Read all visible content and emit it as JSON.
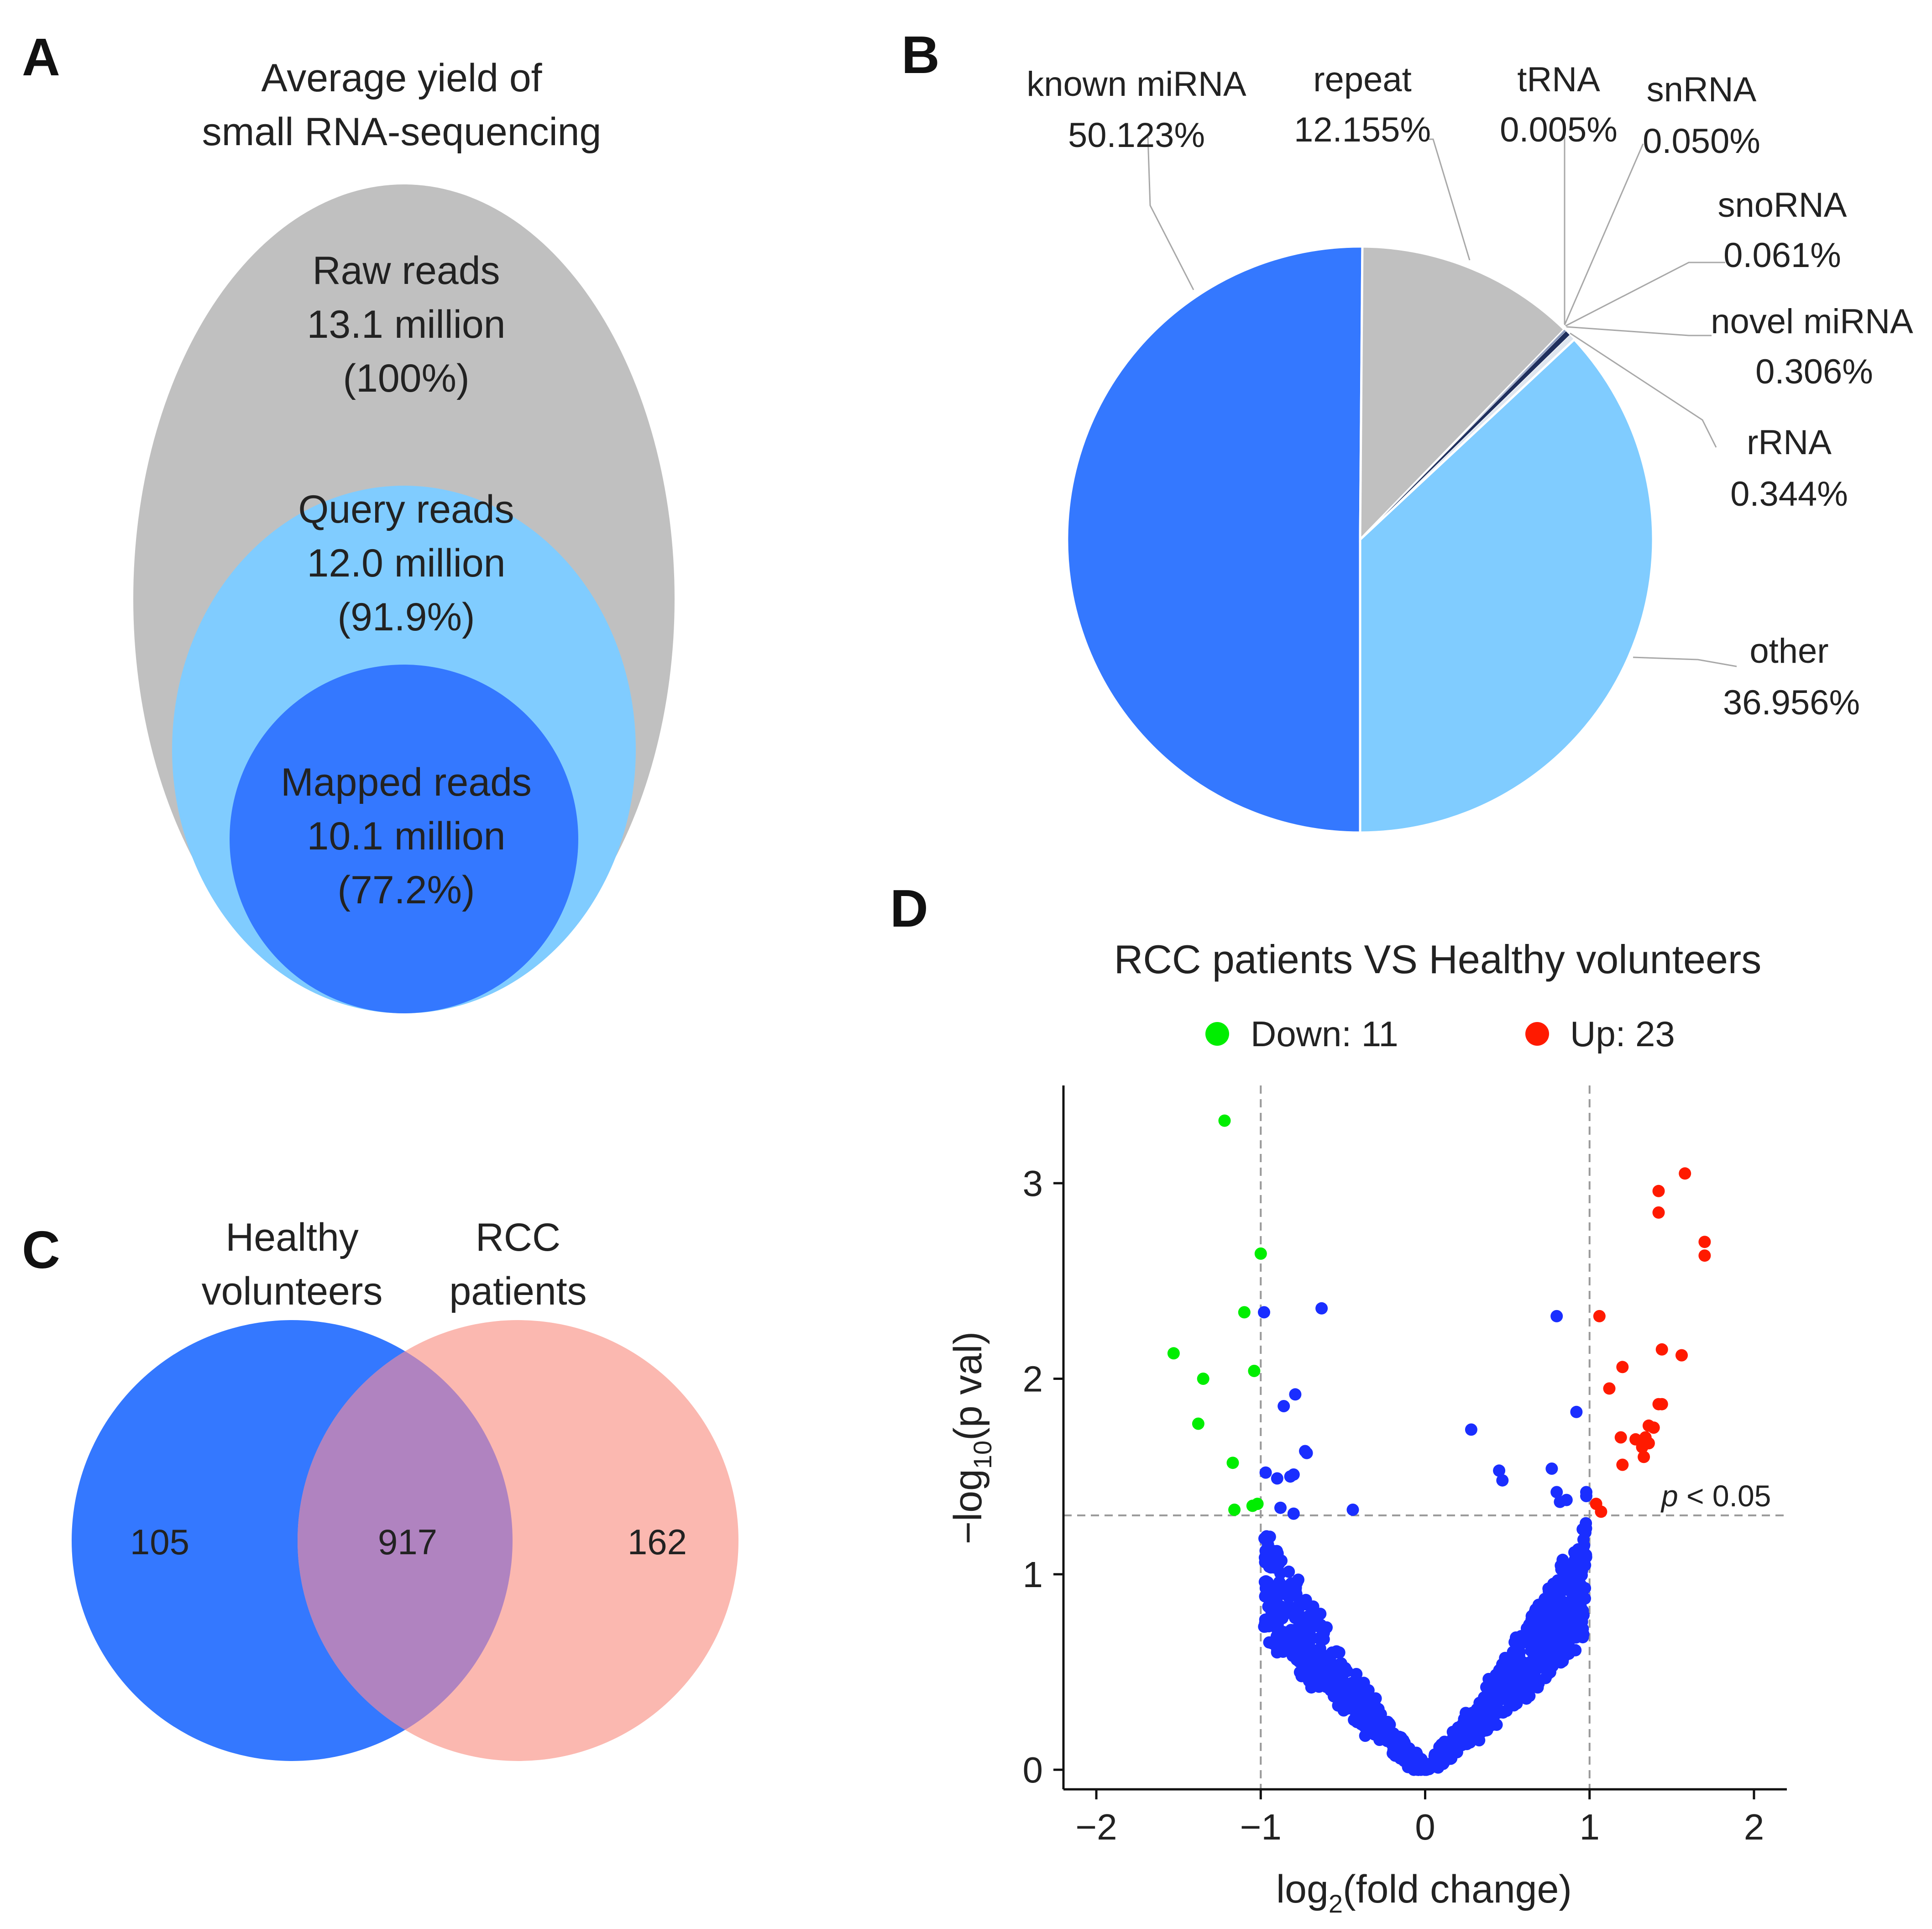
{
  "panels": {
    "a": "A",
    "b": "B",
    "c": "C",
    "d": "D"
  },
  "chart_data": [
    {
      "type": "nested-ellipse",
      "panel": "A",
      "title_line1": "Average yield of",
      "title_line2": "small RNA-sequencing",
      "levels": [
        {
          "name": "Raw reads",
          "value_text": "13.1 million",
          "pct_text": "(100%)",
          "value_million": 13.1,
          "percent": 100,
          "color": "#c0c0c0"
        },
        {
          "name": "Query reads",
          "value_text": "12.0 million",
          "pct_text": "(91.9%)",
          "value_million": 12.0,
          "percent": 91.9,
          "color": "#80ccff"
        },
        {
          "name": "Mapped reads",
          "value_text": "10.1 million",
          "pct_text": "(77.2%)",
          "value_million": 10.1,
          "percent": 77.2,
          "color": "#3478ff"
        }
      ]
    },
    {
      "type": "pie",
      "panel": "B",
      "slices": [
        {
          "name": "known miRNA",
          "pct_text": "50.123%",
          "value": 50.123,
          "color": "#3478ff"
        },
        {
          "name": "repeat",
          "pct_text": "12.155%",
          "value": 12.155,
          "color": "#c0c0c0"
        },
        {
          "name": "tRNA",
          "pct_text": "0.005%",
          "value": 0.005,
          "color": "#1e3a78"
        },
        {
          "name": "snRNA",
          "pct_text": "0.050%",
          "value": 0.05,
          "color": "#253f7e"
        },
        {
          "name": "snoRNA",
          "pct_text": "0.061%",
          "value": 0.061,
          "color": "#2a4a8c"
        },
        {
          "name": "novel miRNA",
          "pct_text": "0.306%",
          "value": 0.306,
          "color": "#20305e"
        },
        {
          "name": "rRNA",
          "pct_text": "0.344%",
          "value": 0.344,
          "color": "#dfe6ef"
        },
        {
          "name": "other",
          "pct_text": "36.956%",
          "value": 36.956,
          "color": "#80ccff"
        }
      ]
    },
    {
      "type": "venn",
      "panel": "C",
      "sets": [
        {
          "label_line1": "Healthy",
          "label_line2": "volunteers",
          "color": "#3478ff"
        },
        {
          "label_line1": "RCC",
          "label_line2": "patients",
          "color": "#fbb8b0"
        }
      ],
      "only_a": 105,
      "intersection": 917,
      "only_b": 162,
      "overlap_color": "#b083c0"
    },
    {
      "type": "scatter",
      "panel": "D",
      "title": "RCC patients VS Healthy volunteers",
      "legend": [
        {
          "label": "Down: 11",
          "color": "#00ee00"
        },
        {
          "label": "Up: 23",
          "color": "#ff1a00"
        }
      ],
      "xlabel_pre": "log",
      "xlabel_sub": "2",
      "xlabel_post": "(fold change)",
      "ylabel_pre": "−log",
      "ylabel_sub": "10",
      "ylabel_post": "(p val)",
      "xlim": [
        -2.2,
        2.2
      ],
      "ylim": [
        -0.1,
        3.5
      ],
      "xticks": [
        -2,
        -1,
        0,
        1,
        2
      ],
      "xtick_labels": [
        "−2",
        "−1",
        "0",
        "1",
        "2"
      ],
      "yticks": [
        0,
        1,
        2,
        3
      ],
      "ytick_labels": [
        "0",
        "1",
        "2",
        "3"
      ],
      "vlines": [
        -1,
        1
      ],
      "hline": 1.301,
      "threshold_p": "p",
      "threshold_rest": " < 0.05",
      "colors": {
        "down": "#00ee00",
        "up": "#ff1a00",
        "ns": "#1a2eff"
      },
      "down_points": [
        [
          -1.22,
          3.32
        ],
        [
          -1.0,
          2.64
        ],
        [
          -1.1,
          2.34
        ],
        [
          -1.53,
          2.13
        ],
        [
          -1.35,
          2.0
        ],
        [
          -1.04,
          2.04
        ],
        [
          -1.38,
          1.77
        ],
        [
          -1.17,
          1.57
        ],
        [
          -1.16,
          1.33
        ],
        [
          -1.05,
          1.35
        ],
        [
          -1.02,
          1.36
        ]
      ],
      "up_points": [
        [
          1.58,
          3.05
        ],
        [
          1.42,
          2.96
        ],
        [
          1.42,
          2.85
        ],
        [
          1.7,
          2.7
        ],
        [
          1.7,
          2.63
        ],
        [
          1.06,
          2.32
        ],
        [
          1.56,
          2.12
        ],
        [
          1.44,
          2.15
        ],
        [
          1.12,
          1.95
        ],
        [
          1.2,
          2.06
        ],
        [
          1.42,
          1.87
        ],
        [
          1.44,
          1.87
        ],
        [
          1.36,
          1.76
        ],
        [
          1.39,
          1.75
        ],
        [
          1.19,
          1.7
        ],
        [
          1.28,
          1.69
        ],
        [
          1.36,
          1.67
        ],
        [
          1.32,
          1.65
        ],
        [
          1.34,
          1.7
        ],
        [
          1.2,
          1.56
        ],
        [
          1.33,
          1.6
        ],
        [
          1.04,
          1.36
        ],
        [
          1.07,
          1.32
        ]
      ],
      "ns_points": [
        [
          -0.98,
          2.34
        ],
        [
          -0.63,
          2.36
        ],
        [
          0.8,
          2.32
        ],
        [
          -0.86,
          1.86
        ],
        [
          -0.79,
          1.92
        ],
        [
          0.92,
          1.83
        ],
        [
          0.28,
          1.74
        ],
        [
          -0.73,
          1.63
        ],
        [
          -0.72,
          1.62
        ],
        [
          -0.97,
          1.52
        ],
        [
          -0.9,
          1.49
        ],
        [
          -0.8,
          1.51
        ],
        [
          -0.82,
          1.5
        ],
        [
          0.45,
          1.53
        ],
        [
          0.47,
          1.48
        ],
        [
          0.77,
          1.54
        ],
        [
          0.8,
          1.42
        ],
        [
          0.98,
          1.42
        ],
        [
          -0.88,
          1.34
        ],
        [
          -0.8,
          1.31
        ],
        [
          -0.44,
          1.33
        ],
        [
          0.82,
          1.37
        ],
        [
          0.86,
          1.38
        ],
        [
          0.98,
          1.4
        ]
      ],
      "ns_count": 1000
    }
  ]
}
